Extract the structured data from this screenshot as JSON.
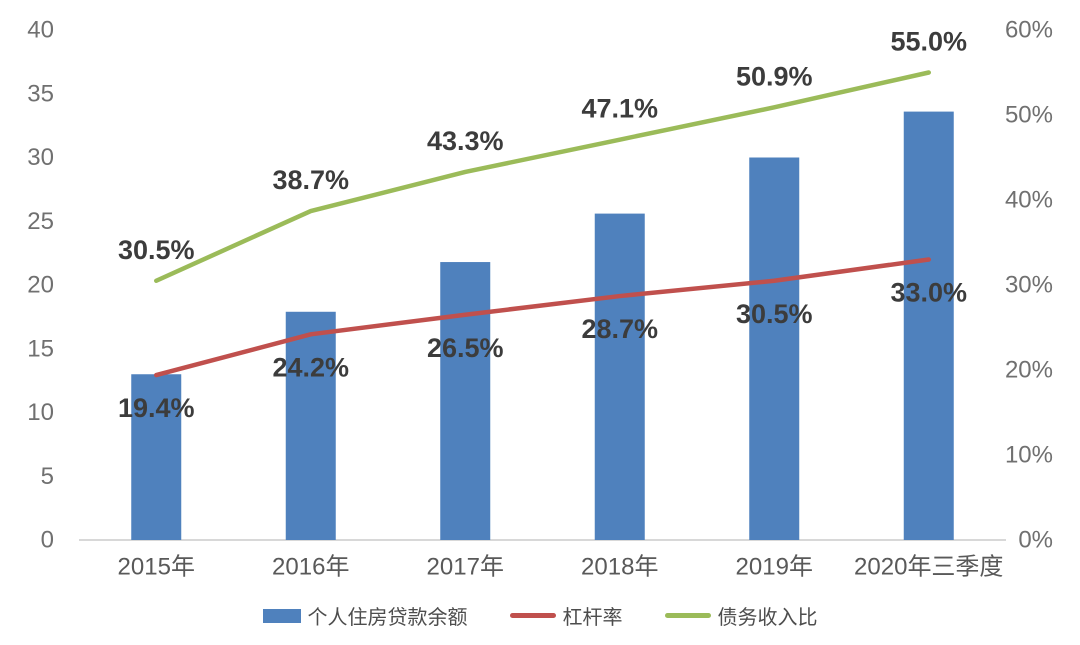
{
  "chart_data": {
    "type": "bar-line-combo",
    "title": "",
    "categories": [
      "2015年",
      "2016年",
      "2017年",
      "2018年",
      "2019年",
      "2020年三季度"
    ],
    "series": [
      {
        "name": "个人住房贷款余额",
        "kind": "bar",
        "axis": "left",
        "color": "#4F81BD",
        "values": [
          13.0,
          17.9,
          21.8,
          25.6,
          30.0,
          33.6
        ]
      },
      {
        "name": "杠杆率",
        "kind": "line",
        "axis": "right",
        "color": "#C0504D",
        "values": [
          19.4,
          24.2,
          26.5,
          28.7,
          30.5,
          33.0
        ],
        "labels": [
          "19.4%",
          "24.2%",
          "26.5%",
          "28.7%",
          "30.5%",
          "33.0%"
        ],
        "label_position": "below"
      },
      {
        "name": "债务收入比",
        "kind": "line",
        "axis": "right",
        "color": "#9BBB59",
        "values": [
          30.5,
          38.7,
          43.3,
          47.1,
          50.9,
          55.0
        ],
        "labels": [
          "30.5%",
          "38.7%",
          "43.3%",
          "47.1%",
          "50.9%",
          "55.0%"
        ],
        "label_position": "above"
      }
    ],
    "left_axis": {
      "min": 0,
      "max": 40,
      "step": 5,
      "ticks": [
        "0",
        "5",
        "10",
        "15",
        "20",
        "25",
        "30",
        "35",
        "40"
      ]
    },
    "right_axis": {
      "min": 0,
      "max": 60,
      "step": 10,
      "ticks": [
        "0%",
        "10%",
        "20%",
        "30%",
        "40%",
        "50%",
        "60%"
      ]
    },
    "grid": "off",
    "legend_position": "bottom",
    "colors": {
      "data_label": "#3c3c3c",
      "tick_label": "#707070",
      "x_label": "#595959",
      "axis_line": "#d8d8d8",
      "background": "#ffffff"
    }
  }
}
